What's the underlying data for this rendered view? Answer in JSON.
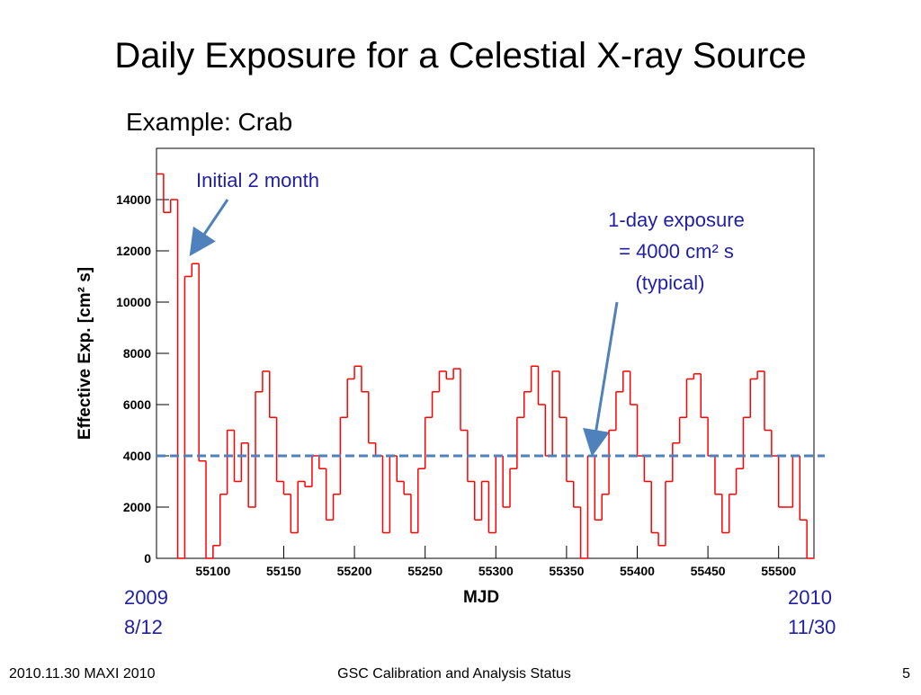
{
  "chart_data": {
    "type": "step",
    "title": "Daily Exposure for a Celestial X-ray Source",
    "subtitle": "Example: Crab",
    "y_label": "Effective Exp. [cm² s]",
    "x_label": "MJD",
    "start_label": [
      "2009",
      "8/12"
    ],
    "end_label": [
      "2010",
      "11/30"
    ],
    "annotations": [
      {
        "text": [
          "Initial 2 month"
        ]
      },
      {
        "text": [
          "1-day exposure",
          "= 4000 cm² s",
          "(typical)"
        ]
      }
    ],
    "reference_line": {
      "value": 4000,
      "color": "#4f81bd"
    },
    "color": "#ff0000",
    "x": [
      55060,
      55065,
      55070,
      55075,
      55080,
      55085,
      55090,
      55095,
      55100,
      55105,
      55110,
      55115,
      55120,
      55125,
      55130,
      55135,
      55140,
      55145,
      55150,
      55155,
      55160,
      55165,
      55170,
      55175,
      55180,
      55185,
      55190,
      55195,
      55200,
      55205,
      55210,
      55215,
      55220,
      55225,
      55230,
      55235,
      55240,
      55245,
      55250,
      55255,
      55260,
      55265,
      55270,
      55275,
      55280,
      55285,
      55290,
      55295,
      55300,
      55305,
      55310,
      55315,
      55320,
      55325,
      55330,
      55335,
      55340,
      55345,
      55350,
      55355,
      55360,
      55365,
      55370,
      55375,
      55380,
      55385,
      55390,
      55395,
      55400,
      55405,
      55410,
      55415,
      55420,
      55425,
      55430,
      55435,
      55440,
      55445,
      55450,
      55455,
      55460,
      55465,
      55470,
      55475,
      55480,
      55485,
      55490,
      55495,
      55500,
      55505,
      55510,
      55515,
      55520
    ],
    "values": [
      15000,
      13500,
      14000,
      0,
      11000,
      11500,
      3800,
      0,
      500,
      2500,
      5000,
      3000,
      4500,
      2000,
      6500,
      7300,
      5500,
      3000,
      2500,
      1000,
      3000,
      2800,
      4000,
      3500,
      1500,
      2500,
      5500,
      7000,
      7500,
      6500,
      4500,
      4000,
      1000,
      4000,
      3000,
      2500,
      1000,
      3500,
      5500,
      6500,
      7300,
      7000,
      7400,
      5000,
      3000,
      1500,
      3000,
      1000,
      4000,
      2000,
      3500,
      5500,
      6500,
      7500,
      6000,
      4000,
      7300,
      5500,
      3000,
      2000,
      0,
      4000,
      1500,
      2500,
      5000,
      6500,
      7300,
      6000,
      4000,
      3000,
      1000,
      500,
      3000,
      4500,
      5500,
      7000,
      7200,
      5500,
      4000,
      2500,
      1000,
      2500,
      3500,
      5500,
      7000,
      7300,
      5000,
      4000,
      2000,
      2000,
      4000,
      1500,
      0
    ],
    "xlim": [
      55060,
      55525
    ],
    "ylim": [
      0,
      16000
    ],
    "xticks": [
      55100,
      55150,
      55200,
      55250,
      55300,
      55350,
      55400,
      55450,
      55500
    ],
    "yticks": [
      0,
      2000,
      4000,
      6000,
      8000,
      10000,
      12000,
      14000
    ]
  },
  "footer": {
    "left": "2010.11.30 MAXI 2010",
    "center": "GSC Calibration and Analysis Status",
    "right": "5"
  }
}
